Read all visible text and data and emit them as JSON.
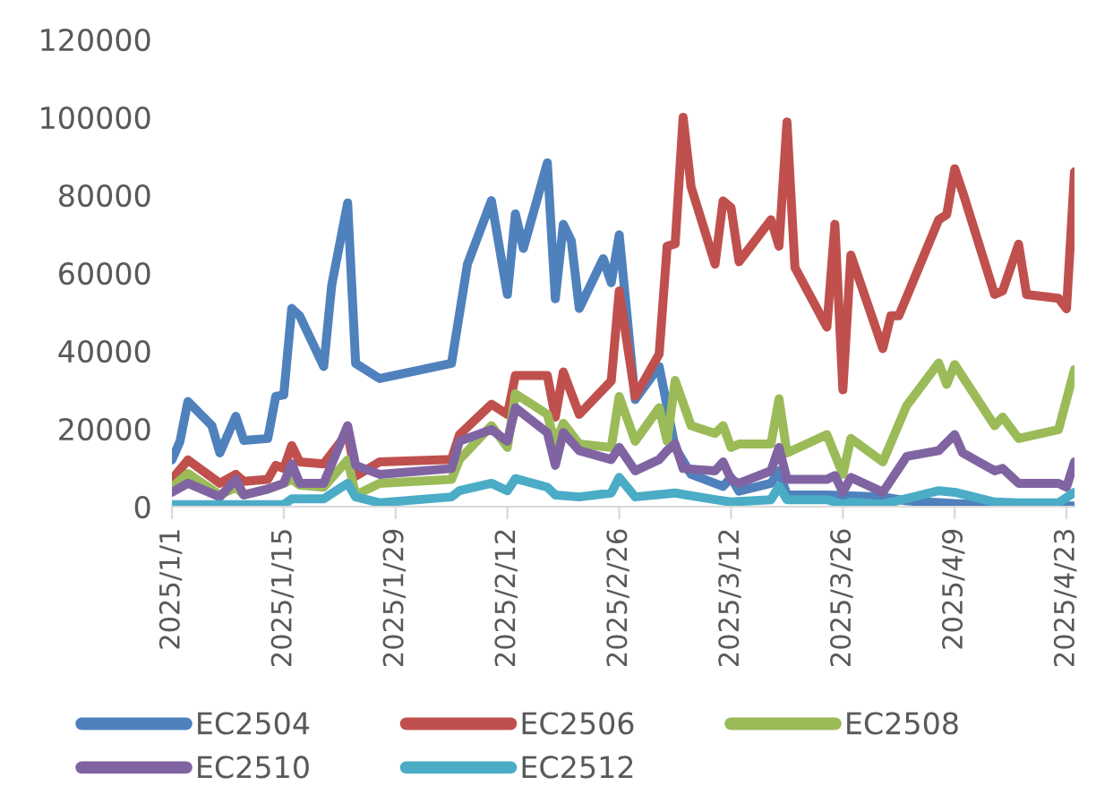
{
  "chart_data": {
    "type": "line",
    "xlim": [
      "2025-01-01",
      "2025-04-24"
    ],
    "xticks": [
      {
        "value": "2025-01-01",
        "label": "2025/1/1"
      },
      {
        "value": "2025-01-15",
        "label": "2025/1/15"
      },
      {
        "value": "2025-01-29",
        "label": "2025/1/29"
      },
      {
        "value": "2025-02-12",
        "label": "2025/2/12"
      },
      {
        "value": "2025-02-26",
        "label": "2025/2/26"
      },
      {
        "value": "2025-03-12",
        "label": "2025/3/12"
      },
      {
        "value": "2025-03-26",
        "label": "2025/3/26"
      },
      {
        "value": "2025-04-09",
        "label": "2025/4/9"
      },
      {
        "value": "2025-04-23",
        "label": "2025/4/23"
      }
    ],
    "ylim": [
      0,
      120000
    ],
    "yticks": [
      0,
      20000,
      40000,
      60000,
      80000,
      100000,
      120000
    ],
    "grid": false,
    "legend": "bottom",
    "marker": "none",
    "line_style": "solid",
    "series": [
      {
        "name": "EC2504",
        "color": "#4f81bd",
        "x": [
          "2025-01-01",
          "2025-01-02",
          "2025-01-03",
          "2025-01-06",
          "2025-01-07",
          "2025-01-09",
          "2025-01-10",
          "2025-01-13",
          "2025-01-14",
          "2025-01-15",
          "2025-01-16",
          "2025-01-17",
          "2025-01-20",
          "2025-01-21",
          "2025-01-23",
          "2025-01-24",
          "2025-01-27",
          "2025-02-05",
          "2025-02-07",
          "2025-02-10",
          "2025-02-12",
          "2025-02-13",
          "2025-02-14",
          "2025-02-17",
          "2025-02-18",
          "2025-02-19",
          "2025-02-20",
          "2025-02-21",
          "2025-02-24",
          "2025-02-25",
          "2025-02-26",
          "2025-02-28",
          "2025-03-03",
          "2025-03-05",
          "2025-03-07",
          "2025-03-11",
          "2025-03-12",
          "2025-03-13",
          "2025-03-17",
          "2025-03-18",
          "2025-03-19",
          "2025-03-24",
          "2025-03-31",
          "2025-04-03",
          "2025-04-09",
          "2025-04-14",
          "2025-04-24"
        ],
        "values": [
          12000,
          16700,
          27000,
          20800,
          13800,
          23200,
          17000,
          17500,
          28300,
          28700,
          50900,
          49000,
          36000,
          56800,
          78000,
          36800,
          32900,
          36800,
          62300,
          78600,
          54500,
          75200,
          66300,
          88300,
          53400,
          72500,
          68300,
          50900,
          63700,
          57500,
          69800,
          27500,
          36000,
          15200,
          8300,
          5200,
          7500,
          4000,
          6000,
          9200,
          3000,
          3000,
          2500,
          1500,
          800,
          300,
          200
        ]
      },
      {
        "name": "EC2506",
        "color": "#c0504d",
        "x": [
          "2025-01-01",
          "2025-01-03",
          "2025-01-07",
          "2025-01-09",
          "2025-01-10",
          "2025-01-13",
          "2025-01-14",
          "2025-01-15",
          "2025-01-16",
          "2025-01-17",
          "2025-01-20",
          "2025-01-23",
          "2025-01-24",
          "2025-01-27",
          "2025-02-05",
          "2025-02-06",
          "2025-02-10",
          "2025-02-12",
          "2025-02-13",
          "2025-02-17",
          "2025-02-18",
          "2025-02-19",
          "2025-02-21",
          "2025-02-25",
          "2025-02-26",
          "2025-02-28",
          "2025-03-03",
          "2025-03-04",
          "2025-03-05",
          "2025-03-06",
          "2025-03-07",
          "2025-03-10",
          "2025-03-11",
          "2025-03-12",
          "2025-03-13",
          "2025-03-17",
          "2025-03-18",
          "2025-03-19",
          "2025-03-20",
          "2025-03-24",
          "2025-03-25",
          "2025-03-26",
          "2025-03-27",
          "2025-03-31",
          "2025-04-01",
          "2025-04-02",
          "2025-04-07",
          "2025-04-08",
          "2025-04-09",
          "2025-04-10",
          "2025-04-14",
          "2025-04-15",
          "2025-04-17",
          "2025-04-18",
          "2025-04-22",
          "2025-04-23",
          "2025-04-24"
        ],
        "values": [
          7000,
          12000,
          6000,
          8300,
          6500,
          7000,
          10600,
          9800,
          15700,
          11500,
          11000,
          19000,
          7800,
          11500,
          12100,
          18500,
          26300,
          23700,
          33700,
          33700,
          23000,
          34600,
          23700,
          32300,
          55400,
          28300,
          39200,
          66900,
          67500,
          100000,
          82100,
          62300,
          78500,
          76800,
          62900,
          73700,
          66900,
          98800,
          61400,
          46100,
          72500,
          30000,
          64600,
          40600,
          49000,
          49000,
          73700,
          75000,
          86800,
          80800,
          54500,
          55400,
          67400,
          54500,
          53500,
          50800,
          86000
        ]
      },
      {
        "name": "EC2508",
        "color": "#9bbb59",
        "x": [
          "2025-01-01",
          "2025-01-03",
          "2025-01-07",
          "2025-01-09",
          "2025-01-10",
          "2025-01-13",
          "2025-01-15",
          "2025-01-16",
          "2025-01-17",
          "2025-01-20",
          "2025-01-23",
          "2025-01-24",
          "2025-01-27",
          "2025-02-05",
          "2025-02-06",
          "2025-02-10",
          "2025-02-12",
          "2025-02-13",
          "2025-02-17",
          "2025-02-18",
          "2025-02-19",
          "2025-02-21",
          "2025-02-25",
          "2025-02-26",
          "2025-02-28",
          "2025-03-03",
          "2025-03-04",
          "2025-03-05",
          "2025-03-07",
          "2025-03-10",
          "2025-03-11",
          "2025-03-12",
          "2025-03-13",
          "2025-03-17",
          "2025-03-18",
          "2025-03-19",
          "2025-03-24",
          "2025-03-26",
          "2025-03-27",
          "2025-03-31",
          "2025-04-03",
          "2025-04-07",
          "2025-04-08",
          "2025-04-09",
          "2025-04-14",
          "2025-04-15",
          "2025-04-17",
          "2025-04-22",
          "2025-04-24"
        ],
        "values": [
          5000,
          8500,
          3000,
          5000,
          3000,
          4500,
          6000,
          7000,
          5500,
          5000,
          12000,
          3000,
          6000,
          7000,
          12100,
          20800,
          15200,
          29000,
          23700,
          16000,
          21400,
          16100,
          15200,
          28300,
          16800,
          25400,
          16800,
          32400,
          20800,
          18800,
          20800,
          15200,
          16100,
          16100,
          27700,
          13800,
          18500,
          8300,
          17500,
          11500,
          26000,
          36900,
          31400,
          36500,
          20800,
          23000,
          17500,
          19800,
          35200
        ]
      },
      {
        "name": "EC2510",
        "color": "#8064a2",
        "x": [
          "2025-01-01",
          "2025-01-03",
          "2025-01-07",
          "2025-01-09",
          "2025-01-10",
          "2025-01-13",
          "2025-01-15",
          "2025-01-16",
          "2025-01-17",
          "2025-01-20",
          "2025-01-23",
          "2025-01-24",
          "2025-01-27",
          "2025-02-05",
          "2025-02-06",
          "2025-02-10",
          "2025-02-12",
          "2025-02-13",
          "2025-02-17",
          "2025-02-18",
          "2025-02-19",
          "2025-02-21",
          "2025-02-25",
          "2025-02-26",
          "2025-02-28",
          "2025-03-03",
          "2025-03-04",
          "2025-03-05",
          "2025-03-06",
          "2025-03-10",
          "2025-03-11",
          "2025-03-12",
          "2025-03-13",
          "2025-03-17",
          "2025-03-18",
          "2025-03-19",
          "2025-03-24",
          "2025-03-25",
          "2025-03-26",
          "2025-03-27",
          "2025-03-31",
          "2025-04-03",
          "2025-04-07",
          "2025-04-09",
          "2025-04-10",
          "2025-04-14",
          "2025-04-15",
          "2025-04-17",
          "2025-04-22",
          "2025-04-23",
          "2025-04-24"
        ],
        "values": [
          3700,
          6000,
          2500,
          7000,
          3000,
          4500,
          6000,
          11000,
          6000,
          6000,
          20800,
          10600,
          8300,
          9800,
          16800,
          19800,
          16800,
          25400,
          19000,
          10600,
          19000,
          14400,
          12100,
          15200,
          9200,
          12100,
          14400,
          16100,
          9800,
          9200,
          11500,
          7000,
          6000,
          9200,
          15200,
          7000,
          7000,
          8000,
          3700,
          7500,
          3700,
          12900,
          14400,
          18500,
          13800,
          9200,
          9800,
          6000,
          6000,
          5000,
          11500
        ]
      },
      {
        "name": "EC2512",
        "color": "#4bacc6",
        "x": [
          "2025-01-01",
          "2025-01-15",
          "2025-01-16",
          "2025-01-20",
          "2025-01-23",
          "2025-01-24",
          "2025-01-27",
          "2025-02-05",
          "2025-02-06",
          "2025-02-10",
          "2025-02-12",
          "2025-02-13",
          "2025-02-17",
          "2025-02-18",
          "2025-02-21",
          "2025-02-25",
          "2025-02-26",
          "2025-02-28",
          "2025-03-05",
          "2025-03-10",
          "2025-03-12",
          "2025-03-17",
          "2025-03-18",
          "2025-03-19",
          "2025-03-24",
          "2025-03-26",
          "2025-03-27",
          "2025-03-31",
          "2025-04-07",
          "2025-04-09",
          "2025-04-14",
          "2025-04-17",
          "2025-04-22",
          "2025-04-24"
        ],
        "values": [
          500,
          500,
          2000,
          2000,
          6000,
          2500,
          1000,
          2500,
          4100,
          6000,
          4100,
          7200,
          5000,
          3000,
          2500,
          3500,
          7500,
          2500,
          3500,
          1800,
          1200,
          1800,
          5200,
          1800,
          1800,
          600,
          1200,
          600,
          4100,
          3700,
          1200,
          1000,
          1000,
          3700
        ]
      }
    ]
  }
}
